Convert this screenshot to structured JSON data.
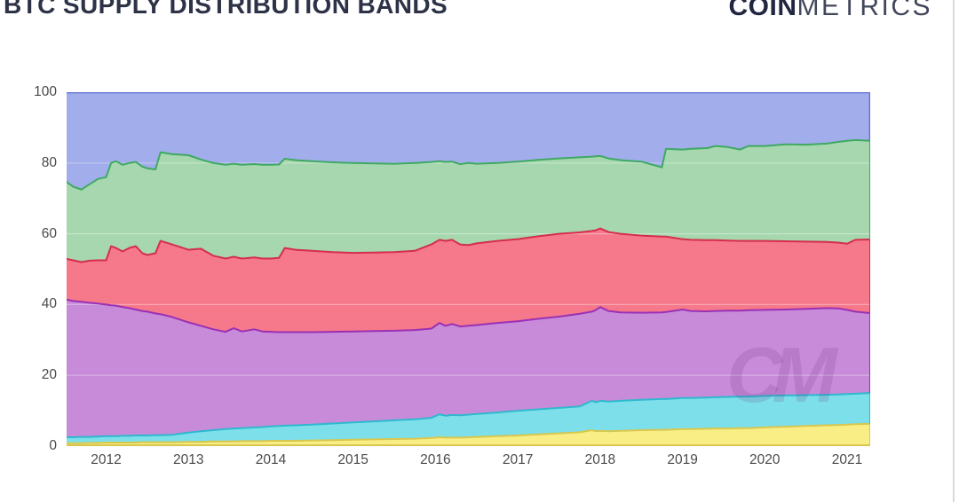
{
  "header": {
    "title": "BTC SUPPLY DISTRIBUTION BANDS",
    "logo": {
      "bold": "COIN",
      "light": "METRICS"
    }
  },
  "watermark": "CM",
  "chart_data": {
    "type": "area",
    "stacked": true,
    "title": "BTC SUPPLY DISTRIBUTION BANDS",
    "xlabel": "",
    "ylabel": "",
    "x_domain": [
      2011.52,
      2021.28
    ],
    "y_domain": [
      0,
      100
    ],
    "x_ticks": [
      2012,
      2013,
      2014,
      2015,
      2016,
      2017,
      2018,
      2019,
      2020,
      2021
    ],
    "y_ticks": [
      0,
      20,
      40,
      60,
      80,
      100
    ],
    "grid": "faint white horizontal lines at y ticks",
    "legend": "none visible",
    "columns": [
      "x",
      "yellow_top",
      "cyan_top",
      "purple_top",
      "red_top",
      "green_top"
    ],
    "top_value": 100,
    "bands_bottom_to_top": [
      {
        "name": "yellow-band",
        "fill": "#F9EE85",
        "stroke": "#D8C74F"
      },
      {
        "name": "cyan-band",
        "fill": "#7DDFE9",
        "stroke": "#2FB9CE"
      },
      {
        "name": "purple-band",
        "fill": "#C78BD9",
        "stroke": "#9A30B5"
      },
      {
        "name": "red-band",
        "fill": "#F5798B",
        "stroke": "#D52E4C"
      },
      {
        "name": "green-band",
        "fill": "#A6D7AE",
        "stroke": "#3FA963"
      },
      {
        "name": "blue-band",
        "fill": "#A2ADEC",
        "stroke": "#5B6BD1"
      }
    ],
    "rows": [
      [
        2011.5,
        0.8,
        2.5,
        41.5,
        53.0,
        75.0
      ],
      [
        2011.6,
        0.8,
        2.5,
        41.0,
        52.5,
        73.3
      ],
      [
        2011.7,
        0.8,
        2.6,
        40.8,
        52.0,
        72.5
      ],
      [
        2011.8,
        0.9,
        2.6,
        40.5,
        52.4,
        74.0
      ],
      [
        2011.9,
        0.9,
        2.7,
        40.3,
        52.5,
        75.5
      ],
      [
        2012.0,
        1.0,
        2.8,
        40.0,
        52.5,
        76.0
      ],
      [
        2012.06,
        1.0,
        2.8,
        39.8,
        56.5,
        80.0
      ],
      [
        2012.12,
        1.0,
        2.8,
        39.7,
        56.0,
        80.5
      ],
      [
        2012.2,
        1.0,
        2.9,
        39.3,
        55.0,
        79.5
      ],
      [
        2012.28,
        1.0,
        2.9,
        39.0,
        56.0,
        80.0
      ],
      [
        2012.36,
        1.0,
        3.0,
        38.6,
        56.5,
        80.3
      ],
      [
        2012.44,
        1.1,
        3.0,
        38.2,
        54.5,
        79.0
      ],
      [
        2012.5,
        1.1,
        3.0,
        38.0,
        54.0,
        78.5
      ],
      [
        2012.6,
        1.1,
        3.1,
        37.5,
        54.5,
        78.2
      ],
      [
        2012.66,
        1.1,
        3.1,
        37.3,
        58.0,
        83.0
      ],
      [
        2012.8,
        1.1,
        3.2,
        36.5,
        57.0,
        82.5
      ],
      [
        2013.0,
        1.2,
        3.8,
        35.0,
        55.5,
        82.2
      ],
      [
        2013.15,
        1.2,
        4.2,
        34.0,
        55.8,
        81.0
      ],
      [
        2013.3,
        1.3,
        4.5,
        33.0,
        53.8,
        80.0
      ],
      [
        2013.45,
        1.3,
        4.8,
        32.3,
        53.0,
        79.5
      ],
      [
        2013.55,
        1.3,
        5.0,
        33.3,
        53.5,
        79.8
      ],
      [
        2013.65,
        1.4,
        5.1,
        32.4,
        53.0,
        79.5
      ],
      [
        2013.8,
        1.4,
        5.3,
        33.0,
        53.3,
        79.7
      ],
      [
        2013.9,
        1.4,
        5.4,
        32.4,
        53.0,
        79.5
      ],
      [
        2014.0,
        1.5,
        5.6,
        32.3,
        53.0,
        79.5
      ],
      [
        2014.1,
        1.5,
        5.7,
        32.2,
        53.2,
        79.6
      ],
      [
        2014.17,
        1.5,
        5.8,
        32.2,
        56.0,
        81.2
      ],
      [
        2014.3,
        1.5,
        5.9,
        32.2,
        55.5,
        80.8
      ],
      [
        2014.5,
        1.6,
        6.1,
        32.2,
        55.2,
        80.5
      ],
      [
        2014.75,
        1.7,
        6.4,
        32.3,
        54.8,
        80.2
      ],
      [
        2015.0,
        1.8,
        6.7,
        32.4,
        54.6,
        80.0
      ],
      [
        2015.25,
        1.9,
        7.0,
        32.5,
        54.7,
        79.9
      ],
      [
        2015.5,
        2.0,
        7.3,
        32.6,
        54.8,
        79.8
      ],
      [
        2015.75,
        2.1,
        7.6,
        32.8,
        55.2,
        80.0
      ],
      [
        2015.95,
        2.3,
        8.0,
        33.2,
        57.0,
        80.3
      ],
      [
        2016.05,
        2.5,
        9.0,
        34.8,
        58.3,
        80.5
      ],
      [
        2016.12,
        2.4,
        8.6,
        34.0,
        58.0,
        80.3
      ],
      [
        2016.2,
        2.4,
        8.8,
        34.5,
        58.3,
        80.4
      ],
      [
        2016.3,
        2.4,
        8.7,
        33.8,
        57.0,
        79.7
      ],
      [
        2016.4,
        2.5,
        8.9,
        34.0,
        56.8,
        80.0
      ],
      [
        2016.5,
        2.6,
        9.1,
        34.2,
        57.3,
        79.8
      ],
      [
        2016.75,
        2.8,
        9.5,
        34.8,
        58.0,
        80.0
      ],
      [
        2017.0,
        3.0,
        10.0,
        35.3,
        58.5,
        80.4
      ],
      [
        2017.25,
        3.3,
        10.4,
        36.0,
        59.3,
        80.9
      ],
      [
        2017.5,
        3.6,
        10.8,
        36.6,
        60.0,
        81.3
      ],
      [
        2017.75,
        3.9,
        11.2,
        37.4,
        60.4,
        81.6
      ],
      [
        2017.9,
        4.5,
        12.8,
        38.0,
        60.8,
        81.8
      ],
      [
        2017.95,
        4.2,
        12.4,
        38.5,
        61.0,
        81.9
      ],
      [
        2018.0,
        4.3,
        12.8,
        39.3,
        61.5,
        82.0
      ],
      [
        2018.1,
        4.2,
        12.6,
        38.2,
        60.5,
        81.3
      ],
      [
        2018.25,
        4.3,
        12.8,
        37.8,
        60.0,
        80.8
      ],
      [
        2018.5,
        4.5,
        13.1,
        37.7,
        59.5,
        80.4
      ],
      [
        2018.75,
        4.6,
        13.3,
        37.8,
        59.2,
        78.8
      ],
      [
        2018.8,
        4.6,
        13.3,
        37.9,
        59.2,
        84.0
      ],
      [
        2019.0,
        4.8,
        13.6,
        38.6,
        58.5,
        83.8
      ],
      [
        2019.1,
        4.8,
        13.6,
        38.2,
        58.3,
        84.0
      ],
      [
        2019.3,
        4.9,
        13.7,
        38.1,
        58.2,
        84.2
      ],
      [
        2019.4,
        5.0,
        13.8,
        38.2,
        58.2,
        84.8
      ],
      [
        2019.55,
        5.0,
        13.9,
        38.3,
        58.1,
        84.5
      ],
      [
        2019.7,
        5.1,
        14.0,
        38.3,
        58.0,
        83.8
      ],
      [
        2019.8,
        5.1,
        14.0,
        38.4,
        58.0,
        84.8
      ],
      [
        2020.0,
        5.3,
        14.2,
        38.5,
        58.0,
        84.8
      ],
      [
        2020.25,
        5.5,
        14.3,
        38.6,
        57.9,
        85.3
      ],
      [
        2020.5,
        5.7,
        14.4,
        38.8,
        57.8,
        85.2
      ],
      [
        2020.75,
        5.9,
        14.5,
        39.0,
        57.7,
        85.5
      ],
      [
        2020.9,
        6.0,
        14.6,
        38.9,
        57.5,
        86.0
      ],
      [
        2021.0,
        6.1,
        14.7,
        38.5,
        57.2,
        86.3
      ],
      [
        2021.1,
        6.2,
        14.8,
        38.0,
        58.3,
        86.5
      ],
      [
        2021.28,
        6.3,
        15.0,
        37.6,
        58.4,
        86.3
      ]
    ]
  }
}
